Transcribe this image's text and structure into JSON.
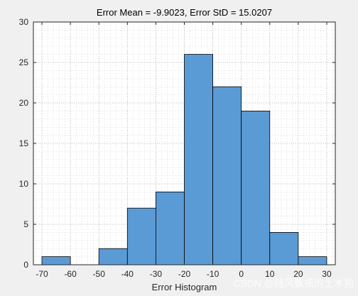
{
  "window": {
    "background_color": "#f0f0f0",
    "watermark": "CSDN @随风飘摇的土木狗"
  },
  "chart_data": {
    "type": "bar",
    "histogram": true,
    "title": "Error Mean = -9.9023, Error StD = 15.0207",
    "xlabel": "Error Histogram",
    "ylabel": "",
    "bin_edges": [
      -70,
      -60,
      -50,
      -40,
      -30,
      -20,
      -10,
      0,
      10,
      20,
      30
    ],
    "values": [
      1,
      0,
      2,
      7,
      9,
      26,
      22,
      19,
      4,
      1
    ],
    "xlim": [
      -73,
      33
    ],
    "ylim": [
      0,
      30
    ],
    "xticks": [
      -70,
      -60,
      -50,
      -40,
      -30,
      -20,
      -10,
      0,
      10,
      20,
      30
    ],
    "yticks": [
      0,
      5,
      10,
      15,
      20,
      25,
      30
    ],
    "grid": true,
    "colors": {
      "bar_fill": "#5b9bd5",
      "bar_edge": "#000000",
      "axes_background": "#ffffff",
      "axis_color": "#262626",
      "grid_color": "#c8c8c8"
    }
  }
}
